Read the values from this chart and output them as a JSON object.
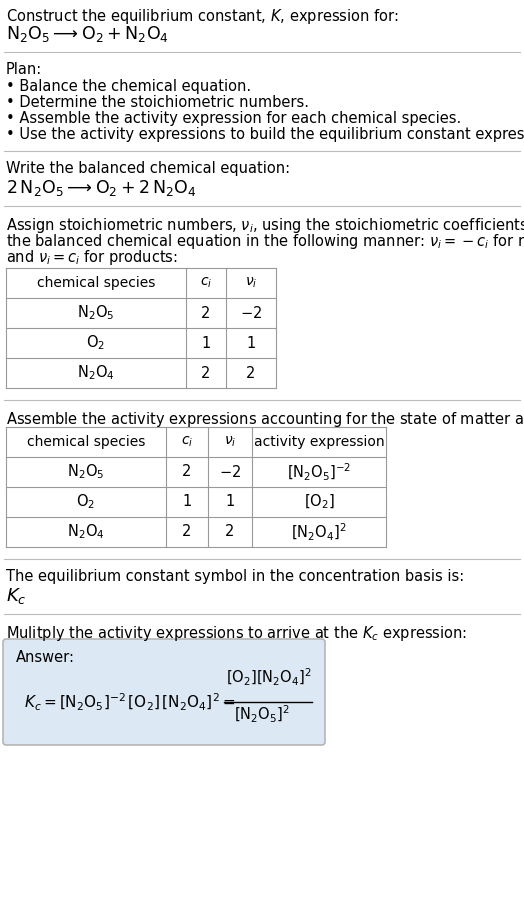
{
  "title_line1": "Construct the equilibrium constant, $K$, expression for:",
  "title_line2": "$\\mathrm{N_2O_5} \\longrightarrow \\mathrm{O_2} + \\mathrm{N_2O_4}$",
  "plan_header": "Plan:",
  "plan_items": [
    "• Balance the chemical equation.",
    "• Determine the stoichiometric numbers.",
    "• Assemble the activity expression for each chemical species.",
    "• Use the activity expressions to build the equilibrium constant expression."
  ],
  "balanced_header": "Write the balanced chemical equation:",
  "balanced_eq": "$2\\,\\mathrm{N_2O_5} \\longrightarrow \\mathrm{O_2} + 2\\,\\mathrm{N_2O_4}$",
  "stoich_lines": [
    "Assign stoichiometric numbers, $\\nu_i$, using the stoichiometric coefficients, $c_i$, from",
    "the balanced chemical equation in the following manner: $\\nu_i = -c_i$ for reactants",
    "and $\\nu_i = c_i$ for products:"
  ],
  "table1_rows": [
    [
      "$\\mathrm{N_2O_5}$",
      "2",
      "$-2$"
    ],
    [
      "$\\mathrm{O_2}$",
      "1",
      "1"
    ],
    [
      "$\\mathrm{N_2O_4}$",
      "2",
      "2"
    ]
  ],
  "activity_header": "Assemble the activity expressions accounting for the state of matter and $\\nu_i$:",
  "table2_rows": [
    [
      "$\\mathrm{N_2O_5}$",
      "2",
      "$-2$",
      "$[\\mathrm{N_2O_5}]^{-2}$"
    ],
    [
      "$\\mathrm{O_2}$",
      "1",
      "1",
      "$[\\mathrm{O_2}]$"
    ],
    [
      "$\\mathrm{N_2O_4}$",
      "2",
      "2",
      "$[\\mathrm{N_2O_4}]^2$"
    ]
  ],
  "kc_header": "The equilibrium constant symbol in the concentration basis is:",
  "kc_symbol": "$K_c$",
  "multiply_header": "Mulitply the activity expressions to arrive at the $K_c$ expression:",
  "answer_box_color": "#dce9f5",
  "answer_label": "Answer:",
  "bg_color": "#ffffff",
  "text_color": "#000000",
  "line_color": "#bbbbbb",
  "table_line_color": "#999999",
  "font_size": 10.5,
  "title2_font_size": 12.5,
  "balanced_eq_font_size": 12.5,
  "kc_font_size": 13.0
}
